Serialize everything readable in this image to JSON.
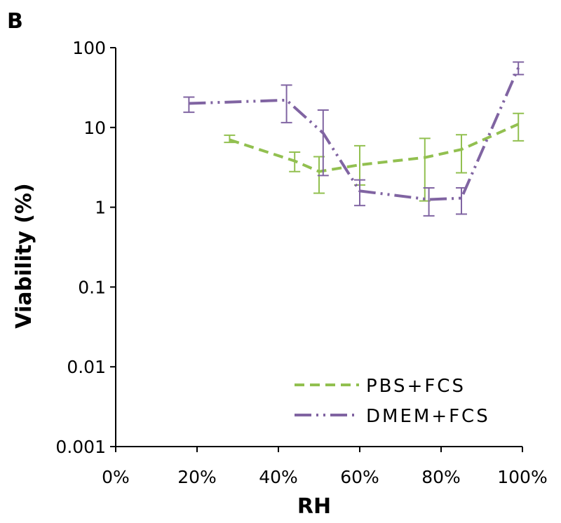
{
  "panel_label": "B",
  "chart_data": {
    "type": "line",
    "xlabel": "RH",
    "ylabel": "Viability (%)",
    "xlim": [
      0,
      100
    ],
    "ylim": [
      0.001,
      100
    ],
    "y_scale": "log",
    "x_ticks": [
      "0%",
      "20%",
      "40%",
      "60%",
      "80%",
      "100%"
    ],
    "x_tick_values": [
      0,
      20,
      40,
      60,
      80,
      100
    ],
    "y_ticks": [
      "0.001",
      "0.01",
      "0.1",
      "1",
      "10",
      "100"
    ],
    "y_tick_values": [
      0.001,
      0.01,
      0.1,
      1,
      10,
      100
    ],
    "legend_position": "bottom-right",
    "series": [
      {
        "name": "PBS+FCS",
        "color": "#92c050",
        "dash": "dashed",
        "x": [
          28,
          44,
          50,
          60,
          76,
          85,
          99
        ],
        "y": [
          7,
          3.8,
          2.8,
          3.4,
          4.2,
          5.3,
          11
        ],
        "err_low": [
          6.5,
          2.8,
          1.5,
          1.9,
          1.2,
          2.7,
          6.8
        ],
        "err_high": [
          8,
          4.9,
          4.3,
          5.9,
          7.3,
          8.1,
          15
        ]
      },
      {
        "name": "DMEM+FCS",
        "color": "#8064a2",
        "dash": "dash-dot-dot",
        "x": [
          18,
          42,
          51,
          60,
          77,
          85,
          99
        ],
        "y": [
          20,
          22,
          8.5,
          1.6,
          1.25,
          1.3,
          56
        ],
        "err_low": [
          15.5,
          11.5,
          2.5,
          1.05,
          0.78,
          0.82,
          46
        ],
        "err_high": [
          24,
          34,
          16.5,
          2.2,
          1.75,
          1.75,
          66
        ]
      }
    ]
  }
}
